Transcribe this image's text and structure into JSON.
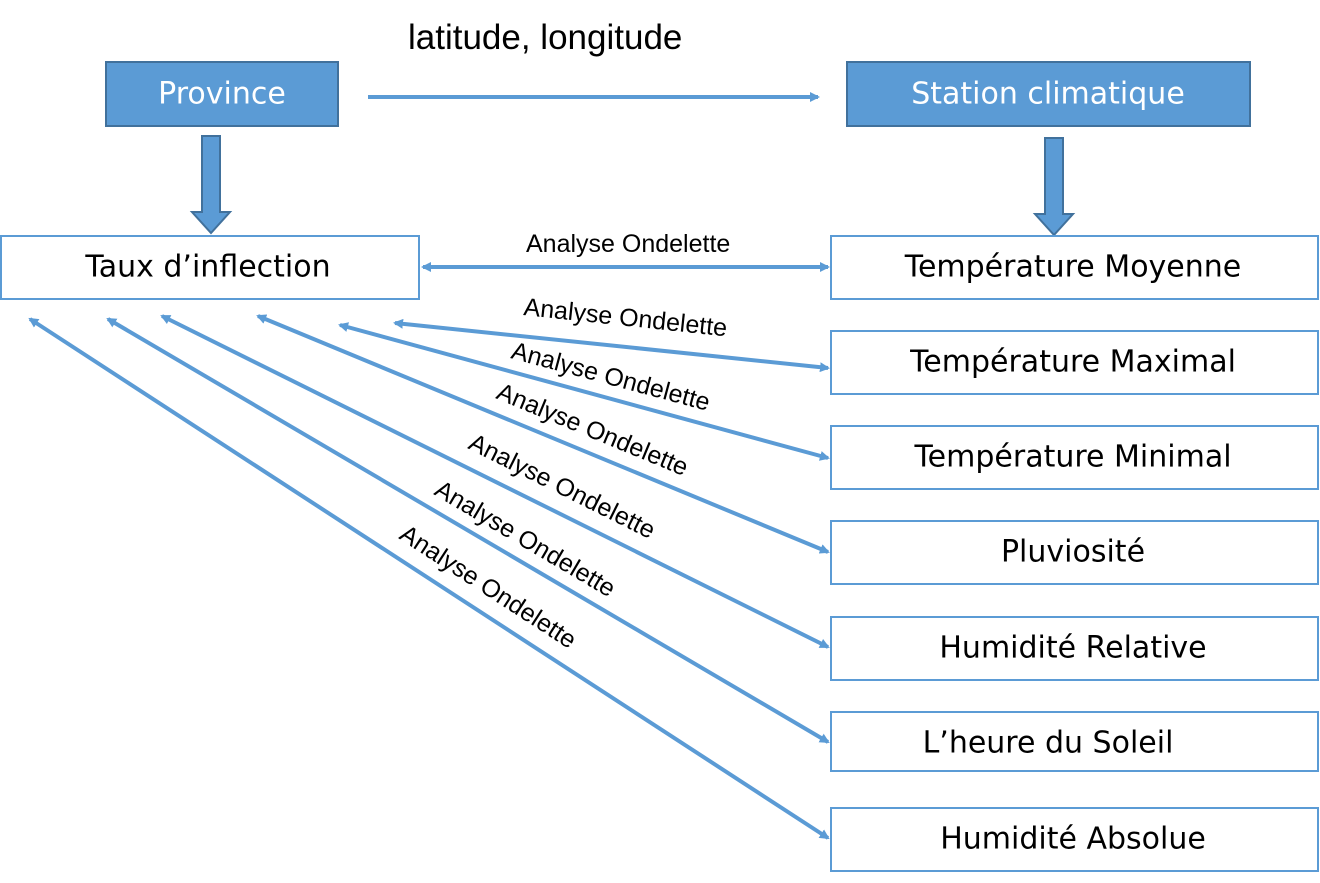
{
  "colors": {
    "accent": "#5b9bd5",
    "accent_border": "#41719c",
    "box_text_light": "#ffffff",
    "box_text_dark": "#000000",
    "background": "#ffffff"
  },
  "nodes": {
    "province": "Province",
    "station": "Station climatique",
    "taux": "Taux d’inflection",
    "temp_moyenne": "Température Moyenne",
    "temp_maximal": "Température Maximal",
    "temp_minimal": "Température Minimal",
    "pluviosite": "Pluviosité",
    "humidite_relative": "Humidité Relative",
    "heure_soleil": "L’heure du Soleil",
    "humidite_absolue": "Humidité Absolue"
  },
  "edges": {
    "province_station": "latitude, longitude",
    "analyse": [
      "Analyse Ondelette",
      "Analyse Ondelette",
      "Analyse Ondelette",
      "Analyse Ondelette",
      "Analyse Ondelette",
      "Analyse Ondelette",
      "Analyse Ondelette"
    ]
  }
}
